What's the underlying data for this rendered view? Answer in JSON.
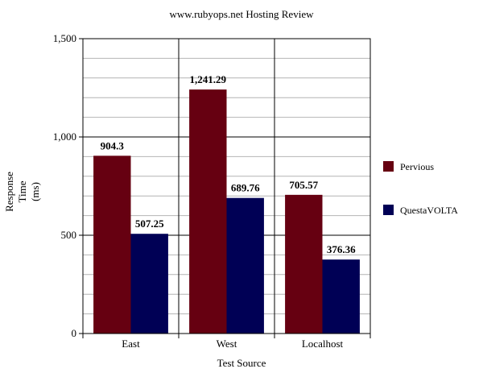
{
  "chart_data": {
    "type": "bar",
    "title": "www.rubyops.net Hosting Review",
    "xlabel": "Test Source",
    "ylabel_lines": [
      "Response",
      "Time",
      "(ms)"
    ],
    "categories": [
      "East",
      "West",
      "Localhost"
    ],
    "series": [
      {
        "name": "Pervious",
        "values": [
          904.3,
          1241.29,
          705.57
        ],
        "labels": [
          "904.3",
          "1,241.29",
          "705.57"
        ],
        "color": "#660011"
      },
      {
        "name": "QuestaVOLTA",
        "values": [
          507.25,
          689.76,
          376.36
        ],
        "labels": [
          "507.25",
          "689.76",
          "376.36"
        ],
        "color": "#000055"
      }
    ],
    "ylim": [
      0,
      1500
    ],
    "yticks": [
      0,
      500,
      1000,
      1500
    ],
    "ytick_labels": [
      "0",
      "500",
      "1,000",
      "1,500"
    ],
    "minor_step": 100,
    "grid": true,
    "legend_position": "right"
  }
}
